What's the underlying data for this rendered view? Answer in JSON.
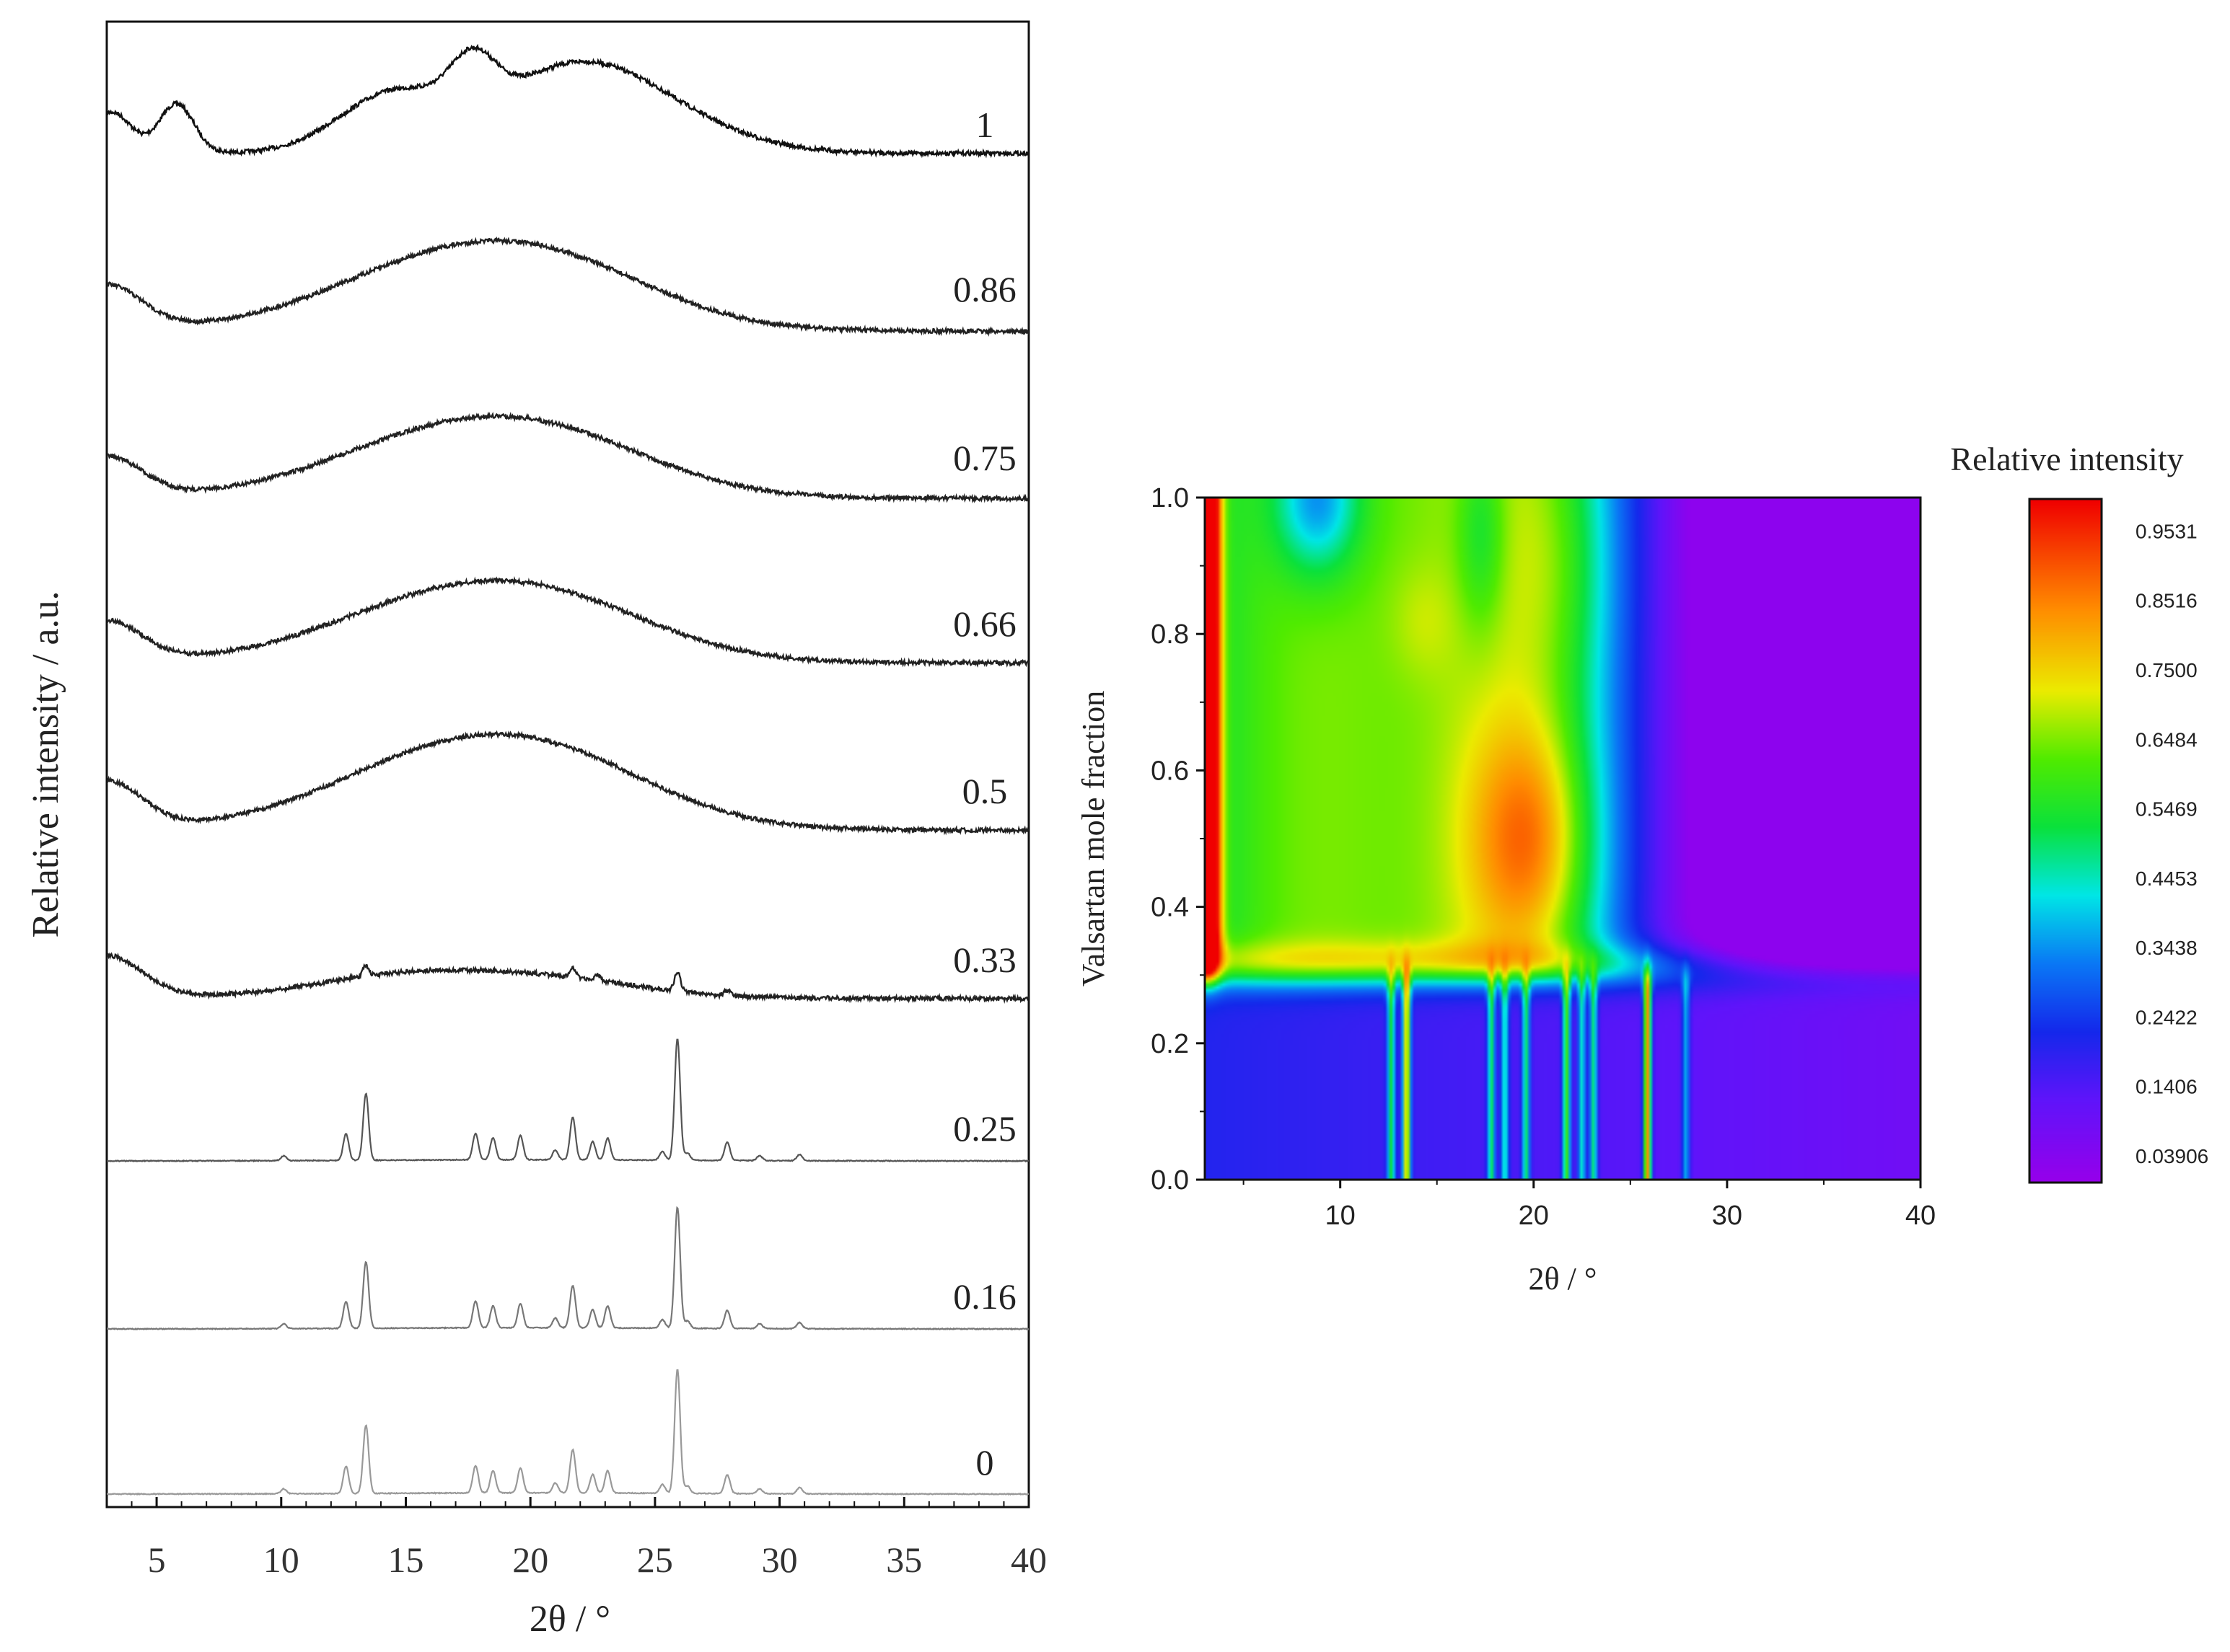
{
  "chart_data": [
    {
      "type": "line",
      "panel": "left",
      "title": "",
      "xlabel": "2θ / °",
      "ylabel": "Relative intensity / a.u.",
      "xlim": [
        3,
        40
      ],
      "xticks": [
        5,
        10,
        15,
        20,
        25,
        30,
        35,
        40
      ],
      "xtick_labels": [
        "5",
        "10",
        "15",
        "20",
        "25",
        "30",
        "35",
        "40"
      ],
      "y_ticks_shown": false,
      "curve_labels": [
        "1",
        "0.86",
        "0.75",
        "0.66",
        "0.5",
        "0.33",
        "0.25",
        "0.16",
        "0"
      ],
      "series": [
        {
          "name": "1",
          "kind": "amorphous-early",
          "color": "#111111"
        },
        {
          "name": "0.86",
          "kind": "amorphous",
          "color": "#222222"
        },
        {
          "name": "0.75",
          "kind": "amorphous",
          "color": "#222222"
        },
        {
          "name": "0.66",
          "kind": "amorphous",
          "color": "#222222"
        },
        {
          "name": "0.5",
          "kind": "amorphous",
          "color": "#222222"
        },
        {
          "name": "0.33",
          "kind": "amorphous-weak-peaks",
          "color": "#222222"
        },
        {
          "name": "0.25",
          "kind": "crystalline",
          "color": "#555555"
        },
        {
          "name": "0.16",
          "kind": "crystalline",
          "color": "#777777"
        },
        {
          "name": "0",
          "kind": "crystalline",
          "color": "#999999"
        }
      ],
      "crystalline_peaks": {
        "positions": [
          10.1,
          12.6,
          13.4,
          17.8,
          18.5,
          19.6,
          21.0,
          21.7,
          22.5,
          23.1,
          25.3,
          25.9,
          26.3,
          27.9,
          29.2,
          30.8
        ],
        "heights": [
          0.04,
          0.22,
          0.55,
          0.22,
          0.18,
          0.2,
          0.08,
          0.35,
          0.15,
          0.18,
          0.07,
          1.0,
          0.06,
          0.15,
          0.04,
          0.05
        ]
      }
    },
    {
      "type": "heatmap",
      "panel": "right",
      "title": "",
      "xlabel": "2θ / °",
      "ylabel": "Valsartan mole fraction",
      "xlim": [
        3,
        40
      ],
      "ylim": [
        0,
        1
      ],
      "xticks": [
        10,
        20,
        30,
        40
      ],
      "xtick_labels": [
        "10",
        "20",
        "30",
        "40"
      ],
      "yticks": [
        0.0,
        0.2,
        0.4,
        0.6,
        0.8,
        1.0
      ],
      "ytick_labels": [
        "0.0",
        "0.2",
        "0.4",
        "0.6",
        "0.8",
        "1.0"
      ],
      "colorbar": {
        "title": "Relative intensity",
        "tick_labels": [
          "0.9531",
          "0.8516",
          "0.7500",
          "0.6484",
          "0.5469",
          "0.4453",
          "0.3438",
          "0.2422",
          "0.1406",
          "0.03906"
        ],
        "tick_values": [
          0.9531,
          0.8516,
          0.75,
          0.6484,
          0.5469,
          0.4453,
          0.3438,
          0.2422,
          0.1406,
          0.03906
        ],
        "colormap": "rainbow",
        "range": [
          0,
          1
        ]
      },
      "crystalline_region_max_fraction": 0.3,
      "amorphous_hotspot": {
        "x": 20,
        "y": 0.5,
        "value": 0.95
      }
    }
  ]
}
